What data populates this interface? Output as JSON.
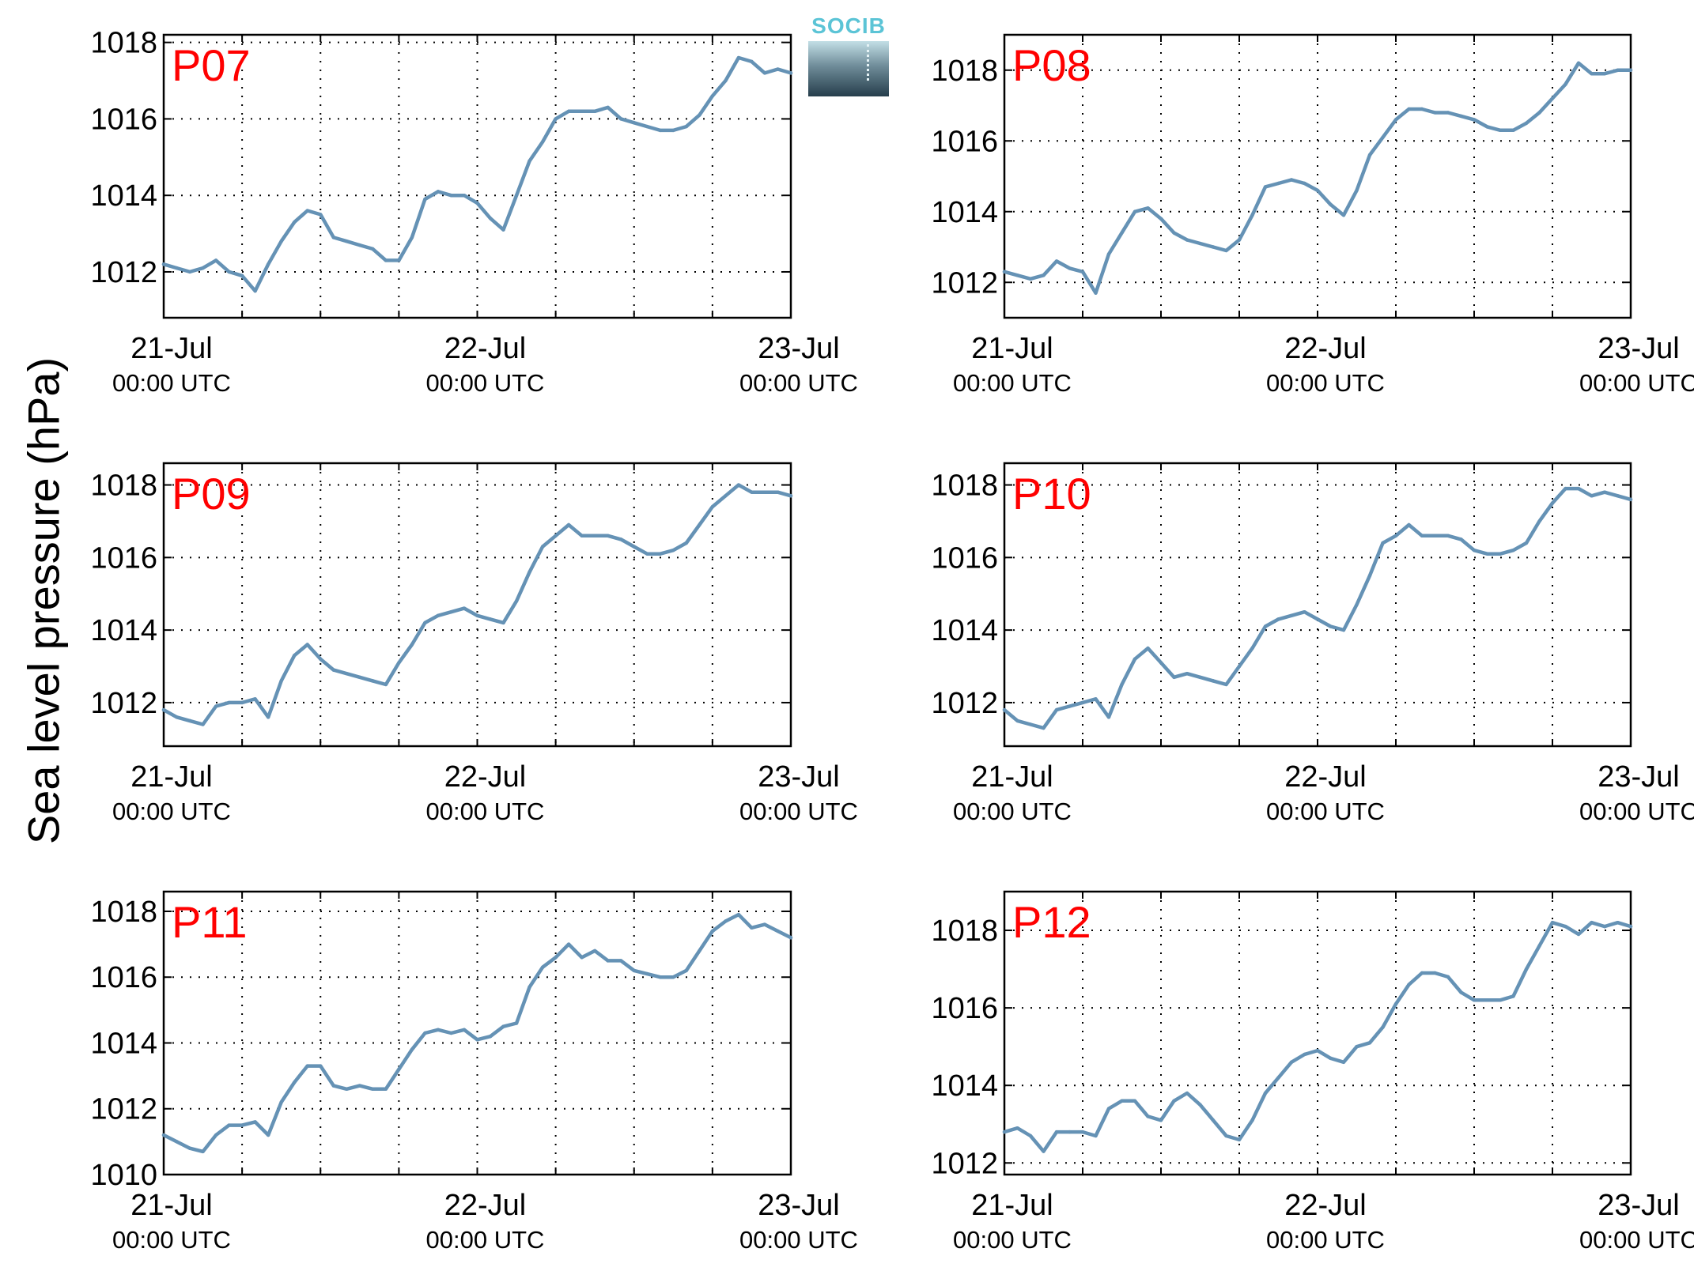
{
  "figure": {
    "ylabel": "Sea level pressure (hPa)",
    "logo_text": "SOCIB"
  },
  "colors": {
    "line": "#6592b5",
    "panel_label": "#ff0000",
    "grid": "#000000"
  },
  "chart_data": [
    {
      "type": "line",
      "panel_label": "P07",
      "ylim": [
        1010.8,
        1018.2
      ],
      "yticks": [
        1012,
        1014,
        1016,
        1018
      ],
      "grid": true,
      "x_unit": "hours since 21-Jul 00:00 UTC",
      "xticks": [
        {
          "x": 0,
          "date": "21-Jul",
          "time": "00:00 UTC"
        },
        {
          "x": 24,
          "date": "22-Jul",
          "time": "00:00 UTC"
        },
        {
          "x": 48,
          "date": "23-Jul",
          "time": "00:00 UTC"
        }
      ],
      "x": [
        0,
        1,
        2,
        3,
        4,
        5,
        6,
        7,
        8,
        9,
        10,
        11,
        12,
        13,
        14,
        15,
        16,
        17,
        18,
        19,
        20,
        21,
        22,
        23,
        24,
        25,
        26,
        27,
        28,
        29,
        30,
        31,
        32,
        33,
        34,
        35,
        36,
        37,
        38,
        39,
        40,
        41,
        42,
        43,
        44,
        45,
        46,
        47,
        48
      ],
      "values": [
        1012.2,
        1012.1,
        1012.0,
        1012.1,
        1012.3,
        1012.0,
        1011.9,
        1011.5,
        1012.2,
        1012.8,
        1013.3,
        1013.6,
        1013.5,
        1012.9,
        1012.8,
        1012.7,
        1012.6,
        1012.3,
        1012.3,
        1012.9,
        1013.9,
        1014.1,
        1014.0,
        1014.0,
        1013.8,
        1013.4,
        1013.1,
        1014.0,
        1014.9,
        1015.4,
        1016.0,
        1016.2,
        1016.2,
        1016.2,
        1016.3,
        1016.0,
        1015.9,
        1015.8,
        1015.7,
        1015.7,
        1015.8,
        1016.1,
        1016.6,
        1017.0,
        1017.6,
        1017.5,
        1017.2,
        1017.3,
        1017.2
      ]
    },
    {
      "type": "line",
      "panel_label": "P08",
      "ylim": [
        1011.0,
        1019.0
      ],
      "yticks": [
        1012,
        1014,
        1016,
        1018
      ],
      "grid": true,
      "x_unit": "hours since 21-Jul 00:00 UTC",
      "xticks": [
        {
          "x": 0,
          "date": "21-Jul",
          "time": "00:00 UTC"
        },
        {
          "x": 24,
          "date": "22-Jul",
          "time": "00:00 UTC"
        },
        {
          "x": 48,
          "date": "23-Jul",
          "time": "00:00 UTC"
        }
      ],
      "x": [
        0,
        1,
        2,
        3,
        4,
        5,
        6,
        7,
        8,
        9,
        10,
        11,
        12,
        13,
        14,
        15,
        16,
        17,
        18,
        19,
        20,
        21,
        22,
        23,
        24,
        25,
        26,
        27,
        28,
        29,
        30,
        31,
        32,
        33,
        34,
        35,
        36,
        37,
        38,
        39,
        40,
        41,
        42,
        43,
        44,
        45,
        46,
        47,
        48
      ],
      "values": [
        1012.3,
        1012.2,
        1012.1,
        1012.2,
        1012.6,
        1012.4,
        1012.3,
        1011.7,
        1012.8,
        1013.4,
        1014.0,
        1014.1,
        1013.8,
        1013.4,
        1013.2,
        1013.1,
        1013.0,
        1012.9,
        1013.2,
        1013.9,
        1014.7,
        1014.8,
        1014.9,
        1014.8,
        1014.6,
        1014.2,
        1013.9,
        1014.6,
        1015.6,
        1016.1,
        1016.6,
        1016.9,
        1016.9,
        1016.8,
        1016.8,
        1016.7,
        1016.6,
        1016.4,
        1016.3,
        1016.3,
        1016.5,
        1016.8,
        1017.2,
        1017.6,
        1018.2,
        1017.9,
        1017.9,
        1018.0,
        1018.0
      ]
    },
    {
      "type": "line",
      "panel_label": "P09",
      "ylim": [
        1010.8,
        1018.6
      ],
      "yticks": [
        1012,
        1014,
        1016,
        1018
      ],
      "grid": true,
      "x_unit": "hours since 21-Jul 00:00 UTC",
      "xticks": [
        {
          "x": 0,
          "date": "21-Jul",
          "time": "00:00 UTC"
        },
        {
          "x": 24,
          "date": "22-Jul",
          "time": "00:00 UTC"
        },
        {
          "x": 48,
          "date": "23-Jul",
          "time": "00:00 UTC"
        }
      ],
      "x": [
        0,
        1,
        2,
        3,
        4,
        5,
        6,
        7,
        8,
        9,
        10,
        11,
        12,
        13,
        14,
        15,
        16,
        17,
        18,
        19,
        20,
        21,
        22,
        23,
        24,
        25,
        26,
        27,
        28,
        29,
        30,
        31,
        32,
        33,
        34,
        35,
        36,
        37,
        38,
        39,
        40,
        41,
        42,
        43,
        44,
        45,
        46,
        47,
        48
      ],
      "values": [
        1011.8,
        1011.6,
        1011.5,
        1011.4,
        1011.9,
        1012.0,
        1012.0,
        1012.1,
        1011.6,
        1012.6,
        1013.3,
        1013.6,
        1013.2,
        1012.9,
        1012.8,
        1012.7,
        1012.6,
        1012.5,
        1013.1,
        1013.6,
        1014.2,
        1014.4,
        1014.5,
        1014.6,
        1014.4,
        1014.3,
        1014.2,
        1014.8,
        1015.6,
        1016.3,
        1016.6,
        1016.9,
        1016.6,
        1016.6,
        1016.6,
        1016.5,
        1016.3,
        1016.1,
        1016.1,
        1016.2,
        1016.4,
        1016.9,
        1017.4,
        1017.7,
        1018.0,
        1017.8,
        1017.8,
        1017.8,
        1017.7
      ]
    },
    {
      "type": "line",
      "panel_label": "P10",
      "ylim": [
        1010.8,
        1018.6
      ],
      "yticks": [
        1012,
        1014,
        1016,
        1018
      ],
      "grid": true,
      "x_unit": "hours since 21-Jul 00:00 UTC",
      "xticks": [
        {
          "x": 0,
          "date": "21-Jul",
          "time": "00:00 UTC"
        },
        {
          "x": 24,
          "date": "22-Jul",
          "time": "00:00 UTC"
        },
        {
          "x": 48,
          "date": "23-Jul",
          "time": "00:00 UTC"
        }
      ],
      "x": [
        0,
        1,
        2,
        3,
        4,
        5,
        6,
        7,
        8,
        9,
        10,
        11,
        12,
        13,
        14,
        15,
        16,
        17,
        18,
        19,
        20,
        21,
        22,
        23,
        24,
        25,
        26,
        27,
        28,
        29,
        30,
        31,
        32,
        33,
        34,
        35,
        36,
        37,
        38,
        39,
        40,
        41,
        42,
        43,
        44,
        45,
        46,
        47,
        48
      ],
      "values": [
        1011.8,
        1011.5,
        1011.4,
        1011.3,
        1011.8,
        1011.9,
        1012.0,
        1012.1,
        1011.6,
        1012.5,
        1013.2,
        1013.5,
        1013.1,
        1012.7,
        1012.8,
        1012.7,
        1012.6,
        1012.5,
        1013.0,
        1013.5,
        1014.1,
        1014.3,
        1014.4,
        1014.5,
        1014.3,
        1014.1,
        1014.0,
        1014.7,
        1015.5,
        1016.4,
        1016.6,
        1016.9,
        1016.6,
        1016.6,
        1016.6,
        1016.5,
        1016.2,
        1016.1,
        1016.1,
        1016.2,
        1016.4,
        1017.0,
        1017.5,
        1017.9,
        1017.9,
        1017.7,
        1017.8,
        1017.7,
        1017.6
      ]
    },
    {
      "type": "line",
      "panel_label": "P11",
      "ylim": [
        1010.0,
        1018.6
      ],
      "yticks": [
        1010,
        1012,
        1014,
        1016,
        1018
      ],
      "grid": true,
      "x_unit": "hours since 21-Jul 00:00 UTC",
      "xticks": [
        {
          "x": 0,
          "date": "21-Jul",
          "time": "00:00 UTC"
        },
        {
          "x": 24,
          "date": "22-Jul",
          "time": "00:00 UTC"
        },
        {
          "x": 48,
          "date": "23-Jul",
          "time": "00:00 UTC"
        }
      ],
      "x": [
        0,
        1,
        2,
        3,
        4,
        5,
        6,
        7,
        8,
        9,
        10,
        11,
        12,
        13,
        14,
        15,
        16,
        17,
        18,
        19,
        20,
        21,
        22,
        23,
        24,
        25,
        26,
        27,
        28,
        29,
        30,
        31,
        32,
        33,
        34,
        35,
        36,
        37,
        38,
        39,
        40,
        41,
        42,
        43,
        44,
        45,
        46,
        47,
        48
      ],
      "values": [
        1011.2,
        1011.0,
        1010.8,
        1010.7,
        1011.2,
        1011.5,
        1011.5,
        1011.6,
        1011.2,
        1012.2,
        1012.8,
        1013.3,
        1013.3,
        1012.7,
        1012.6,
        1012.7,
        1012.6,
        1012.6,
        1013.2,
        1013.8,
        1014.3,
        1014.4,
        1014.3,
        1014.4,
        1014.1,
        1014.2,
        1014.5,
        1014.6,
        1015.7,
        1016.3,
        1016.6,
        1017.0,
        1016.6,
        1016.8,
        1016.5,
        1016.5,
        1016.2,
        1016.1,
        1016.0,
        1016.0,
        1016.2,
        1016.8,
        1017.4,
        1017.7,
        1017.9,
        1017.5,
        1017.6,
        1017.4,
        1017.2
      ]
    },
    {
      "type": "line",
      "panel_label": "P12",
      "ylim": [
        1011.7,
        1019.0
      ],
      "yticks": [
        1012,
        1014,
        1016,
        1018
      ],
      "grid": true,
      "x_unit": "hours since 21-Jul 00:00 UTC",
      "xticks": [
        {
          "x": 0,
          "date": "21-Jul",
          "time": "00:00 UTC"
        },
        {
          "x": 24,
          "date": "22-Jul",
          "time": "00:00 UTC"
        },
        {
          "x": 48,
          "date": "23-Jul",
          "time": "00:00 UTC"
        }
      ],
      "x": [
        0,
        1,
        2,
        3,
        4,
        5,
        6,
        7,
        8,
        9,
        10,
        11,
        12,
        13,
        14,
        15,
        16,
        17,
        18,
        19,
        20,
        21,
        22,
        23,
        24,
        25,
        26,
        27,
        28,
        29,
        30,
        31,
        32,
        33,
        34,
        35,
        36,
        37,
        38,
        39,
        40,
        41,
        42,
        43,
        44,
        45,
        46,
        47,
        48
      ],
      "values": [
        1012.8,
        1012.9,
        1012.7,
        1012.3,
        1012.8,
        1012.8,
        1012.8,
        1012.7,
        1013.4,
        1013.6,
        1013.6,
        1013.2,
        1013.1,
        1013.6,
        1013.8,
        1013.5,
        1013.1,
        1012.7,
        1012.6,
        1013.1,
        1013.8,
        1014.2,
        1014.6,
        1014.8,
        1014.9,
        1014.7,
        1014.6,
        1015.0,
        1015.1,
        1015.5,
        1016.1,
        1016.6,
        1016.9,
        1016.9,
        1016.8,
        1016.4,
        1016.2,
        1016.2,
        1016.2,
        1016.3,
        1017.0,
        1017.6,
        1018.2,
        1018.1,
        1017.9,
        1018.2,
        1018.1,
        1018.2,
        1018.1
      ]
    }
  ]
}
